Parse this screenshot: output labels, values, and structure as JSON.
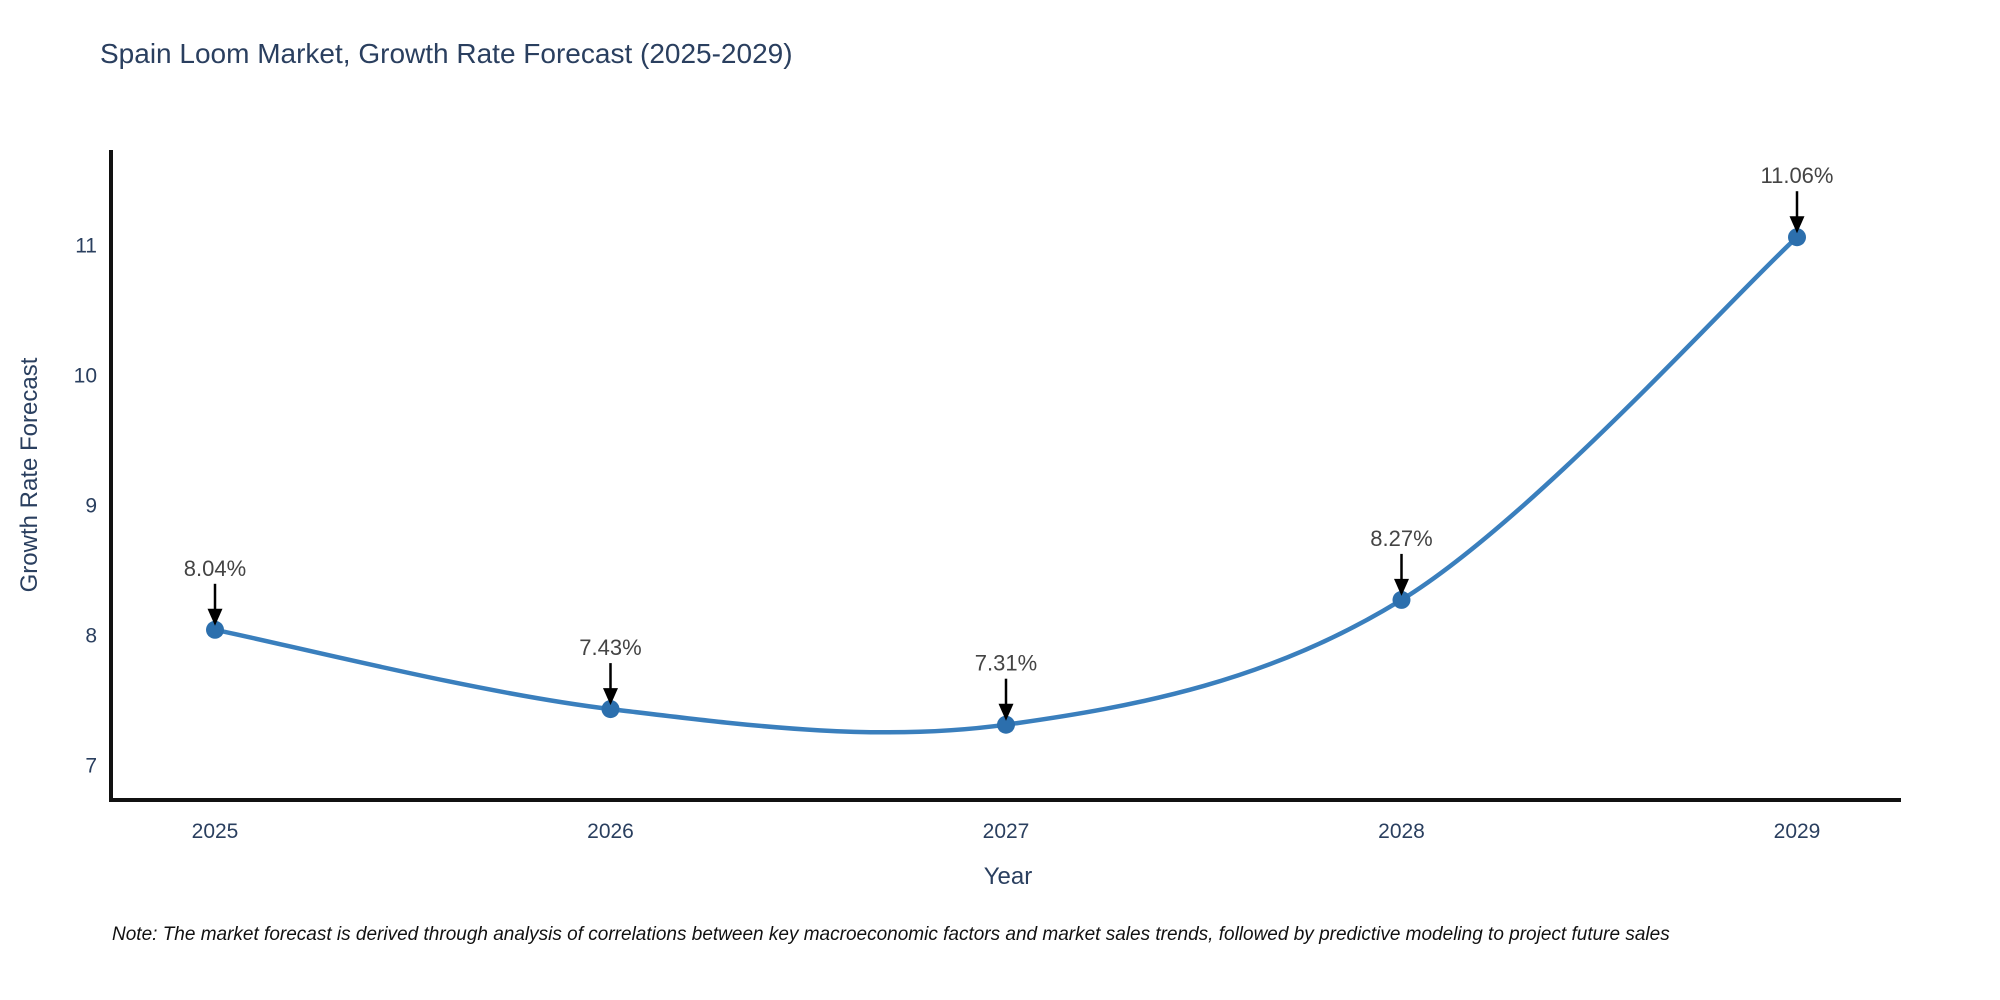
{
  "chart_data": {
    "type": "line",
    "title": "Spain Loom Market, Growth Rate Forecast (2025-2029)",
    "xlabel": "Year",
    "ylabel": "Growth Rate Forecast",
    "categories": [
      "2025",
      "2026",
      "2027",
      "2028",
      "2029"
    ],
    "series": [
      {
        "name": "Growth Rate Forecast",
        "values": [
          8.04,
          7.43,
          7.31,
          8.27,
          11.06
        ],
        "point_labels": [
          "8.04%",
          "7.43%",
          "7.31%",
          "8.27%",
          "11.06%"
        ]
      }
    ],
    "yticks": [
      7,
      8,
      9,
      10,
      11
    ],
    "ylim": [
      6.731,
      11.731
    ],
    "grid": false,
    "legend_position": "none",
    "line_style": "smooth-spline",
    "annotation_style": "arrow-down-to-point",
    "note": "Note: The market forecast is derived through analysis of correlations between key macroeconomic factors and market sales trends, followed by predictive modeling to project future sales",
    "colors": {
      "line": "#3a7fbd",
      "marker": "#2c6fad",
      "arrow": "#000000",
      "annotation_text": "#444444",
      "axis_line": "#111111",
      "title_text": "#2a3f5f",
      "tick_text": "#2a3f5f",
      "background": "#ffffff"
    }
  }
}
